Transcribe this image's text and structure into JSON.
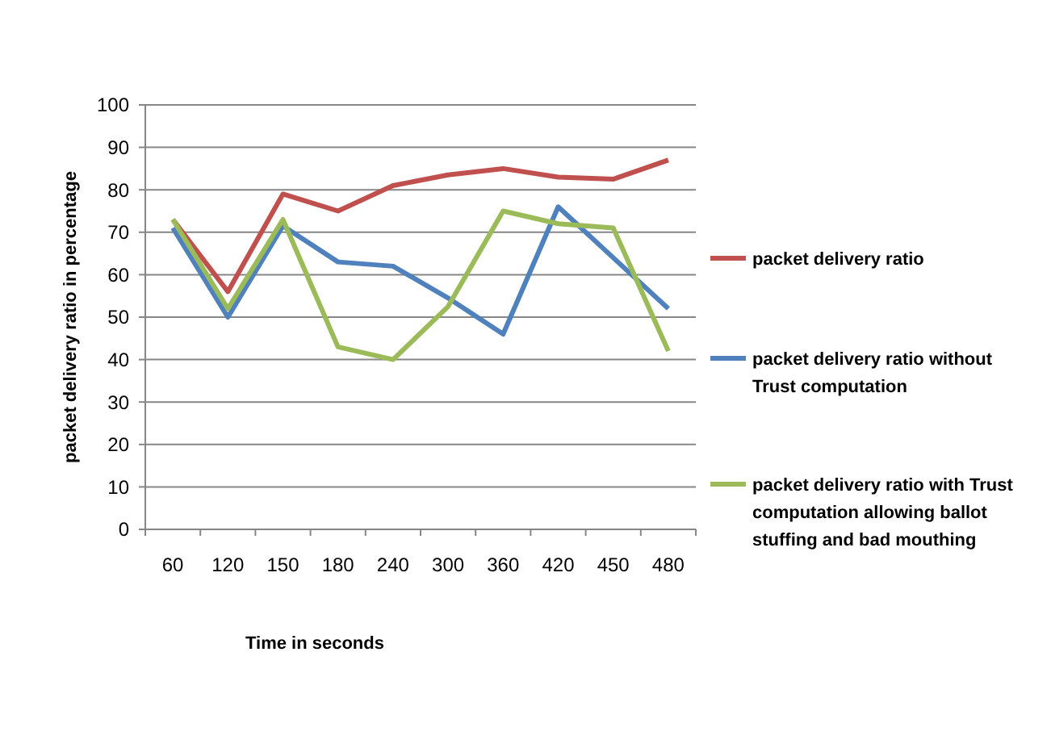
{
  "chart_data": {
    "type": "line",
    "xlabel": "Time in seconds",
    "ylabel": "packet delivery ratio in percentage",
    "categories": [
      "60",
      "120",
      "150",
      "180",
      "240",
      "300",
      "360",
      "420",
      "450",
      "480"
    ],
    "series": [
      {
        "name": "packet delivery ratio",
        "color": "#c0504d",
        "values": [
          73,
          56,
          79,
          75,
          81,
          83.5,
          85,
          83,
          82.5,
          87
        ]
      },
      {
        "name": "packet delivery ratio without Trust computation",
        "color": "#4f81bd",
        "values": [
          71,
          50,
          71.5,
          63,
          62,
          54.5,
          46,
          76,
          64,
          52
        ]
      },
      {
        "name": "packet delivery ratio with Trust computation allowing ballot stuffing and bad mouthing",
        "color": "#9bbb59",
        "values": [
          73,
          52,
          73,
          43,
          40,
          52.5,
          75,
          72,
          71,
          42
        ]
      }
    ],
    "ylim": [
      0,
      100
    ],
    "yticks": [
      0,
      10,
      20,
      30,
      40,
      50,
      60,
      70,
      80,
      90,
      100
    ],
    "grid": "y",
    "legend": "right",
    "marker": "none",
    "line_style": "solid"
  }
}
